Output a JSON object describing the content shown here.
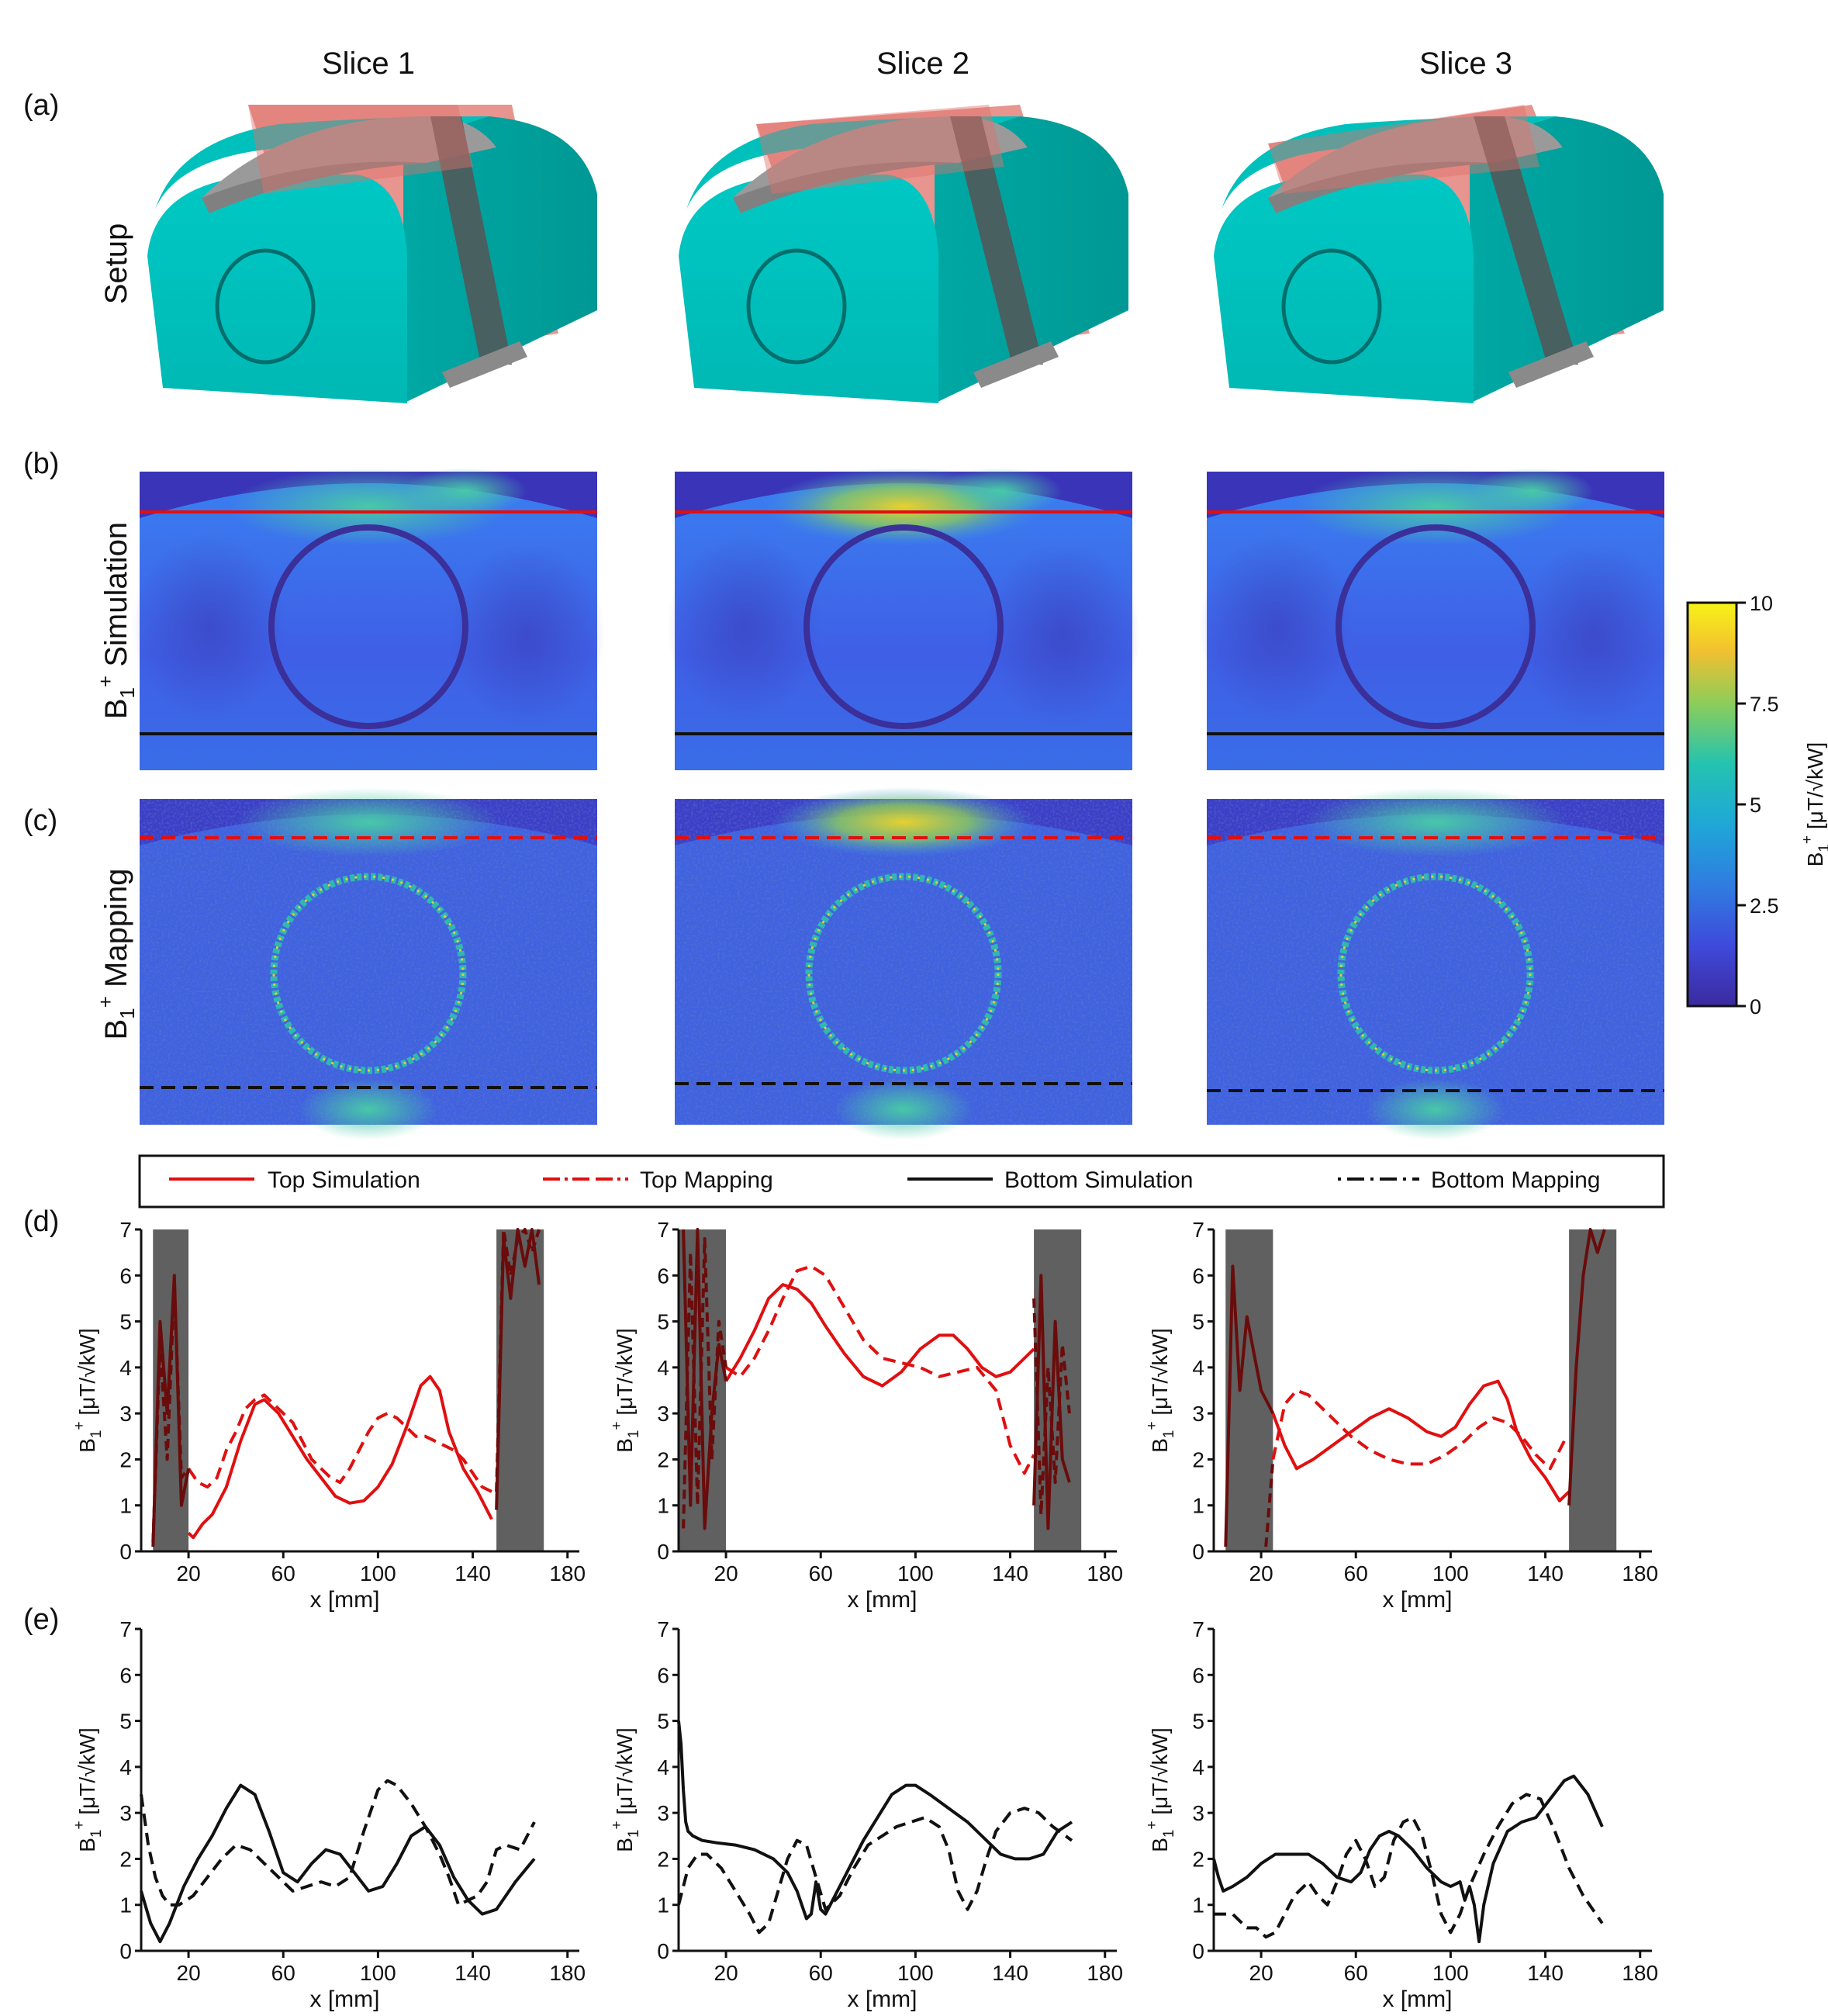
{
  "figure": {
    "col_titles": [
      "Slice 1",
      "Slice 2",
      "Slice 3"
    ],
    "panel_labels": [
      "(a)",
      "(b)",
      "(c)",
      "(d)",
      "(e)"
    ],
    "row_setup": "Setup",
    "row_sim_main": "B",
    "row_sim_sub": "1",
    "row_sim_sup": "+",
    "row_sim_rest": " Simulation",
    "row_map_main": "B",
    "row_map_sub": "1",
    "row_map_sup": "+",
    "row_map_rest": " Mapping"
  },
  "colorbar": {
    "ticks": [
      "10",
      "7.5",
      "5",
      "2.5",
      "0"
    ],
    "label_main": "B",
    "label_sub": "1",
    "label_sup": "+",
    "label_rest": " [μT/√kW]",
    "range": [
      0,
      10
    ]
  },
  "legend": {
    "items": [
      "Top Simulation",
      "Top Mapping",
      "Bottom Simulation",
      "Bottom Mapping"
    ]
  },
  "axes": {
    "ylabel_main": "B",
    "ylabel_sub": "1",
    "ylabel_sup": "+",
    "ylabel_rest": " [μT/√kW]",
    "xlabel": "x [mm]",
    "yticks": [
      "0",
      "1",
      "2",
      "3",
      "4",
      "5",
      "6",
      "7"
    ],
    "xticks": [
      "20",
      "60",
      "100",
      "140",
      "180"
    ]
  },
  "colors": {
    "phantom": "#00c4c0",
    "coil": "#9a9a9a",
    "slice_plane": "#e0706a",
    "top_line": "#e01010",
    "bottom_line": "#111111",
    "shade": "#606060",
    "dark_red": "#6a0c0c"
  },
  "chart_data": [
    {
      "type": "line",
      "panel": "d",
      "slice": 1,
      "xlabel": "x [mm]",
      "ylabel": "B1+ [μT/√kW]",
      "xlim": [
        0,
        185
      ],
      "ylim": [
        0,
        7
      ],
      "shaded_x": [
        [
          5,
          20
        ],
        [
          150,
          170
        ]
      ],
      "series": [
        {
          "name": "Top Simulation",
          "x": [
            20,
            22,
            26,
            30,
            36,
            42,
            48,
            52,
            58,
            64,
            70,
            76,
            82,
            88,
            94,
            100,
            106,
            112,
            118,
            122,
            126,
            130,
            136,
            142,
            148
          ],
          "y": [
            0.4,
            0.3,
            0.6,
            0.8,
            1.4,
            2.4,
            3.2,
            3.3,
            3.0,
            2.5,
            2.0,
            1.6,
            1.2,
            1.05,
            1.1,
            1.4,
            1.9,
            2.7,
            3.6,
            3.8,
            3.5,
            2.6,
            1.8,
            1.3,
            0.7
          ]
        },
        {
          "name": "Top Mapping",
          "x": [
            20,
            24,
            28,
            32,
            36,
            40,
            44,
            48,
            52,
            56,
            60,
            64,
            68,
            72,
            76,
            80,
            84,
            88,
            92,
            96,
            100,
            104,
            108,
            112,
            116,
            120,
            124,
            128,
            132,
            136,
            140,
            144,
            148
          ],
          "y": [
            1.8,
            1.5,
            1.4,
            1.6,
            2.2,
            2.6,
            3.1,
            3.3,
            3.4,
            3.2,
            3.0,
            2.8,
            2.4,
            2.0,
            1.8,
            1.6,
            1.5,
            1.8,
            2.2,
            2.6,
            2.9,
            3.0,
            2.9,
            2.7,
            2.5,
            2.5,
            2.4,
            2.3,
            2.2,
            2.0,
            1.7,
            1.4,
            1.3
          ]
        },
        {
          "name": "Top Simulation (shaded)",
          "x": [
            5,
            8,
            11,
            14,
            17,
            20,
            150,
            153,
            156,
            159,
            162,
            165,
            168
          ],
          "y": [
            0.1,
            5.0,
            3.0,
            6.0,
            1.0,
            1.8,
            0.9,
            6.8,
            5.5,
            7.0,
            6.2,
            7.0,
            5.8
          ]
        },
        {
          "name": "Top Mapping (shaded)",
          "x": [
            5,
            8,
            11,
            14,
            17,
            20,
            150,
            153,
            156,
            159,
            162,
            165,
            168
          ],
          "y": [
            0.2,
            4.5,
            2.0,
            5.8,
            1.6,
            1.8,
            1.3,
            7.0,
            6.0,
            6.8,
            7.0,
            6.5,
            7.0
          ]
        }
      ]
    },
    {
      "type": "line",
      "panel": "d",
      "slice": 2,
      "xlabel": "x [mm]",
      "ylabel": "B1+ [μT/√kW]",
      "xlim": [
        0,
        185
      ],
      "ylim": [
        0,
        7
      ],
      "shaded_x": [
        [
          0,
          20
        ],
        [
          150,
          170
        ]
      ],
      "series": [
        {
          "name": "Top Simulation",
          "x": [
            20,
            26,
            32,
            38,
            44,
            50,
            56,
            62,
            70,
            78,
            86,
            94,
            102,
            110,
            116,
            122,
            128,
            134,
            140,
            146,
            150
          ],
          "y": [
            3.7,
            4.2,
            4.8,
            5.5,
            5.8,
            5.7,
            5.4,
            4.9,
            4.3,
            3.8,
            3.6,
            3.9,
            4.4,
            4.7,
            4.7,
            4.4,
            4.0,
            3.8,
            3.9,
            4.2,
            4.4
          ]
        },
        {
          "name": "Top Mapping",
          "x": [
            20,
            26,
            32,
            38,
            44,
            50,
            56,
            62,
            70,
            78,
            86,
            94,
            102,
            110,
            118,
            126,
            134,
            140,
            146,
            150
          ],
          "y": [
            4.0,
            3.8,
            4.2,
            4.8,
            5.5,
            6.1,
            6.2,
            6.0,
            5.3,
            4.6,
            4.2,
            4.1,
            4.0,
            3.8,
            3.9,
            4.0,
            3.5,
            2.3,
            1.7,
            2.1
          ]
        },
        {
          "name": "Top Simulation (shaded)",
          "x": [
            2,
            5,
            8,
            11,
            14,
            17,
            20,
            150,
            153,
            156,
            159,
            162,
            165
          ],
          "y": [
            7.0,
            1.0,
            7.0,
            0.5,
            3.0,
            4.5,
            3.7,
            1.0,
            6.0,
            0.5,
            5.0,
            2.0,
            1.5
          ]
        },
        {
          "name": "Top Mapping (shaded)",
          "x": [
            2,
            5,
            8,
            11,
            14,
            17,
            20,
            150,
            153,
            156,
            159,
            162,
            165
          ],
          "y": [
            0.5,
            6.5,
            1.0,
            6.8,
            2.0,
            5.0,
            4.0,
            5.5,
            0.8,
            4.0,
            1.5,
            4.5,
            3.0
          ]
        }
      ]
    },
    {
      "type": "line",
      "panel": "d",
      "slice": 3,
      "xlabel": "x [mm]",
      "ylabel": "B1+ [μT/√kW]",
      "xlim": [
        0,
        185
      ],
      "ylim": [
        0,
        7
      ],
      "shaded_x": [
        [
          5,
          25
        ],
        [
          150,
          170
        ]
      ],
      "series": [
        {
          "name": "Top Simulation",
          "x": [
            25,
            30,
            35,
            42,
            50,
            58,
            66,
            74,
            82,
            90,
            96,
            102,
            108,
            114,
            120,
            124,
            128,
            134,
            140,
            146,
            150
          ],
          "y": [
            3.0,
            2.3,
            1.8,
            2.0,
            2.3,
            2.6,
            2.9,
            3.1,
            2.9,
            2.6,
            2.5,
            2.7,
            3.2,
            3.6,
            3.7,
            3.3,
            2.6,
            2.0,
            1.6,
            1.1,
            1.3
          ]
        },
        {
          "name": "Top Mapping",
          "x": [
            25,
            30,
            35,
            40,
            46,
            52,
            58,
            66,
            74,
            82,
            90,
            98,
            106,
            112,
            118,
            124,
            130,
            136,
            142,
            148,
            150
          ],
          "y": [
            2.0,
            3.2,
            3.5,
            3.4,
            3.1,
            2.8,
            2.5,
            2.2,
            2.0,
            1.9,
            1.9,
            2.1,
            2.4,
            2.7,
            2.9,
            2.8,
            2.5,
            2.1,
            1.8,
            2.4,
            2.4
          ]
        },
        {
          "name": "Top Simulation (shaded)",
          "x": [
            5,
            8,
            11,
            14,
            17,
            20,
            25,
            150,
            153,
            156,
            159,
            162,
            165
          ],
          "y": [
            0.1,
            6.2,
            3.5,
            5.1,
            4.3,
            3.5,
            3.0,
            1.0,
            4.0,
            6.0,
            7.0,
            6.5,
            7.0
          ]
        },
        {
          "name": "Top Mapping (shaded)",
          "x": [
            22,
            25
          ],
          "y": [
            0.1,
            2.0
          ]
        }
      ]
    },
    {
      "type": "line",
      "panel": "e",
      "slice": 1,
      "xlabel": "x [mm]",
      "ylabel": "B1+ [μT/√kW]",
      "xlim": [
        0,
        185
      ],
      "ylim": [
        0,
        7
      ],
      "series": [
        {
          "name": "Bottom Simulation",
          "x": [
            0,
            4,
            8,
            12,
            18,
            24,
            30,
            36,
            42,
            48,
            54,
            60,
            66,
            72,
            78,
            84,
            90,
            96,
            102,
            108,
            114,
            120,
            126,
            132,
            138,
            144,
            150,
            158,
            166
          ],
          "y": [
            1.3,
            0.6,
            0.2,
            0.6,
            1.4,
            2.0,
            2.5,
            3.1,
            3.6,
            3.4,
            2.6,
            1.7,
            1.5,
            1.9,
            2.2,
            2.1,
            1.7,
            1.3,
            1.4,
            1.9,
            2.5,
            2.7,
            2.3,
            1.6,
            1.1,
            0.8,
            0.9,
            1.5,
            2.0
          ]
        },
        {
          "name": "Bottom Mapping",
          "x": [
            0,
            3,
            6,
            9,
            12,
            16,
            22,
            28,
            34,
            40,
            46,
            52,
            58,
            64,
            70,
            76,
            82,
            88,
            94,
            100,
            104,
            108,
            114,
            120,
            126,
            130,
            134,
            138,
            142,
            146,
            150,
            154,
            160,
            166
          ],
          "y": [
            3.4,
            2.3,
            1.6,
            1.2,
            1.0,
            1.0,
            1.2,
            1.6,
            2.0,
            2.3,
            2.2,
            1.9,
            1.6,
            1.3,
            1.4,
            1.5,
            1.4,
            1.6,
            2.6,
            3.5,
            3.7,
            3.6,
            3.2,
            2.7,
            2.1,
            1.6,
            1.0,
            1.1,
            1.2,
            1.5,
            2.2,
            2.3,
            2.2,
            2.8
          ]
        }
      ]
    },
    {
      "type": "line",
      "panel": "e",
      "slice": 2,
      "xlabel": "x [mm]",
      "ylabel": "B1+ [μT/√kW]",
      "xlim": [
        0,
        185
      ],
      "ylim": [
        0,
        7
      ],
      "series": [
        {
          "name": "Bottom Simulation",
          "x": [
            0,
            1,
            2,
            3,
            4,
            6,
            10,
            16,
            24,
            32,
            40,
            46,
            50,
            54,
            56,
            58,
            60,
            62,
            66,
            72,
            78,
            84,
            90,
            96,
            100,
            106,
            114,
            122,
            130,
            136,
            142,
            148,
            154,
            160,
            166
          ],
          "y": [
            5.0,
            4.5,
            3.5,
            2.8,
            2.6,
            2.5,
            2.4,
            2.35,
            2.3,
            2.2,
            2.0,
            1.7,
            1.3,
            0.7,
            0.8,
            1.5,
            0.9,
            0.8,
            1.2,
            1.8,
            2.4,
            2.9,
            3.4,
            3.6,
            3.6,
            3.4,
            3.1,
            2.8,
            2.4,
            2.1,
            2.0,
            2.0,
            2.1,
            2.6,
            2.8
          ]
        },
        {
          "name": "Bottom Mapping",
          "x": [
            0,
            4,
            8,
            12,
            18,
            24,
            30,
            34,
            38,
            42,
            46,
            50,
            54,
            58,
            62,
            68,
            74,
            80,
            86,
            92,
            98,
            104,
            110,
            114,
            118,
            122,
            126,
            130,
            134,
            140,
            146,
            152,
            158,
            166
          ],
          "y": [
            1.0,
            1.8,
            2.1,
            2.1,
            1.8,
            1.3,
            0.8,
            0.4,
            0.6,
            1.3,
            2.0,
            2.4,
            2.3,
            1.6,
            0.9,
            1.2,
            1.8,
            2.3,
            2.5,
            2.7,
            2.8,
            2.9,
            2.7,
            2.2,
            1.3,
            0.9,
            1.3,
            2.0,
            2.6,
            3.0,
            3.1,
            3.0,
            2.7,
            2.4
          ]
        }
      ]
    },
    {
      "type": "line",
      "panel": "e",
      "slice": 3,
      "xlabel": "x [mm]",
      "ylabel": "B1+ [μT/√kW]",
      "xlim": [
        0,
        185
      ],
      "ylim": [
        0,
        7
      ],
      "series": [
        {
          "name": "Bottom Simulation",
          "x": [
            0,
            2,
            4,
            8,
            14,
            20,
            26,
            32,
            40,
            46,
            52,
            58,
            62,
            66,
            70,
            74,
            78,
            84,
            90,
            96,
            100,
            104,
            106,
            108,
            110,
            112,
            114,
            118,
            124,
            130,
            136,
            142,
            148,
            152,
            158,
            164
          ],
          "y": [
            2.0,
            1.6,
            1.3,
            1.4,
            1.6,
            1.9,
            2.1,
            2.1,
            2.1,
            1.9,
            1.6,
            1.5,
            1.7,
            2.2,
            2.5,
            2.6,
            2.5,
            2.2,
            1.8,
            1.5,
            1.4,
            1.5,
            1.1,
            1.4,
            1.0,
            0.2,
            1.0,
            1.9,
            2.6,
            2.8,
            2.9,
            3.3,
            3.7,
            3.8,
            3.4,
            2.7
          ]
        },
        {
          "name": "Bottom Mapping",
          "x": [
            0,
            4,
            8,
            14,
            18,
            22,
            26,
            30,
            34,
            40,
            44,
            48,
            52,
            56,
            60,
            64,
            68,
            72,
            76,
            80,
            84,
            88,
            92,
            96,
            100,
            104,
            108,
            114,
            120,
            126,
            132,
            138,
            144,
            150,
            156,
            164
          ],
          "y": [
            0.8,
            0.8,
            0.8,
            0.5,
            0.5,
            0.3,
            0.4,
            0.8,
            1.2,
            1.5,
            1.2,
            1.0,
            1.5,
            2.1,
            2.4,
            2.0,
            1.4,
            1.6,
            2.4,
            2.8,
            2.9,
            2.5,
            1.7,
            0.8,
            0.4,
            0.8,
            1.4,
            2.1,
            2.7,
            3.2,
            3.4,
            3.3,
            2.6,
            1.8,
            1.2,
            0.6
          ]
        }
      ]
    }
  ]
}
